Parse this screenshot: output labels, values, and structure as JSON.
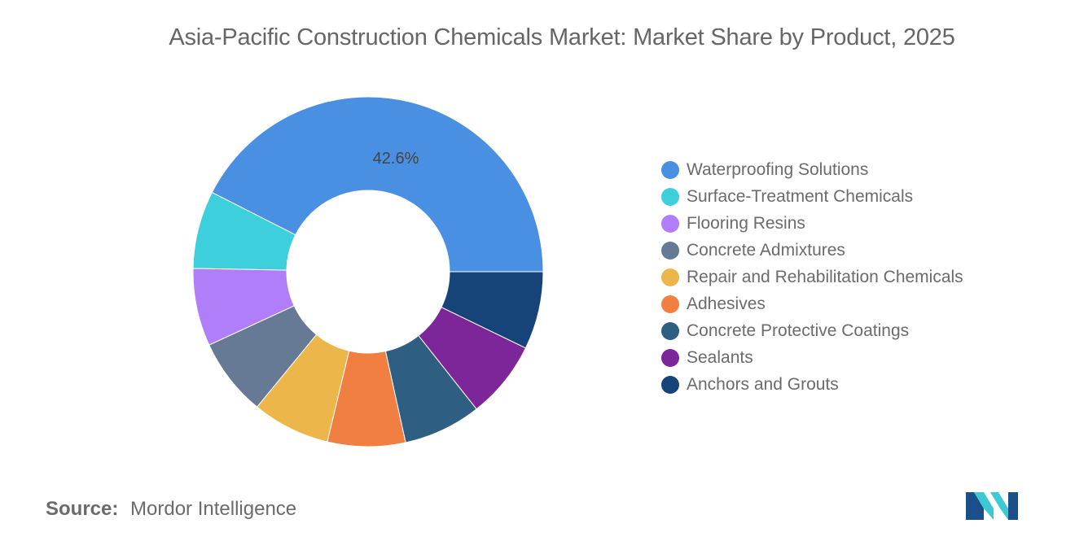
{
  "title": "Asia-Pacific Construction Chemicals Market: Market Share by Product, 2025",
  "source": {
    "label": "Source:",
    "value": "Mordor Intelligence"
  },
  "logo": {
    "icon": "mordor-intelligence-logo-icon",
    "colors": [
      "#1b4f8a",
      "#3ec8d4"
    ]
  },
  "chart_data": {
    "type": "pie",
    "variant": "donut",
    "title": "Asia-Pacific Construction Chemicals Market: Market Share by Product, 2025",
    "legend_position": "right",
    "labels": [
      "Waterproofing Solutions",
      "Surface-Treatment Chemicals",
      "Flooring Resins",
      "Concrete Admixtures",
      "Repair and Rehabilitation Chemicals",
      "Adhesives",
      "Concrete Protective Coatings",
      "Sealants",
      "Anchors and Grouts"
    ],
    "values": [
      42.6,
      7.2,
      7.2,
      7.2,
      7.2,
      7.2,
      7.2,
      7.2,
      7.2
    ],
    "colors": [
      "#4a90e2",
      "#3ecfdc",
      "#b07ef8",
      "#667a96",
      "#ecb64a",
      "#f17f42",
      "#2e5e82",
      "#7d2699",
      "#16437a"
    ],
    "data_labels": [
      "42.6%",
      "",
      "",
      "",
      "",
      "",
      "",
      "",
      ""
    ]
  }
}
